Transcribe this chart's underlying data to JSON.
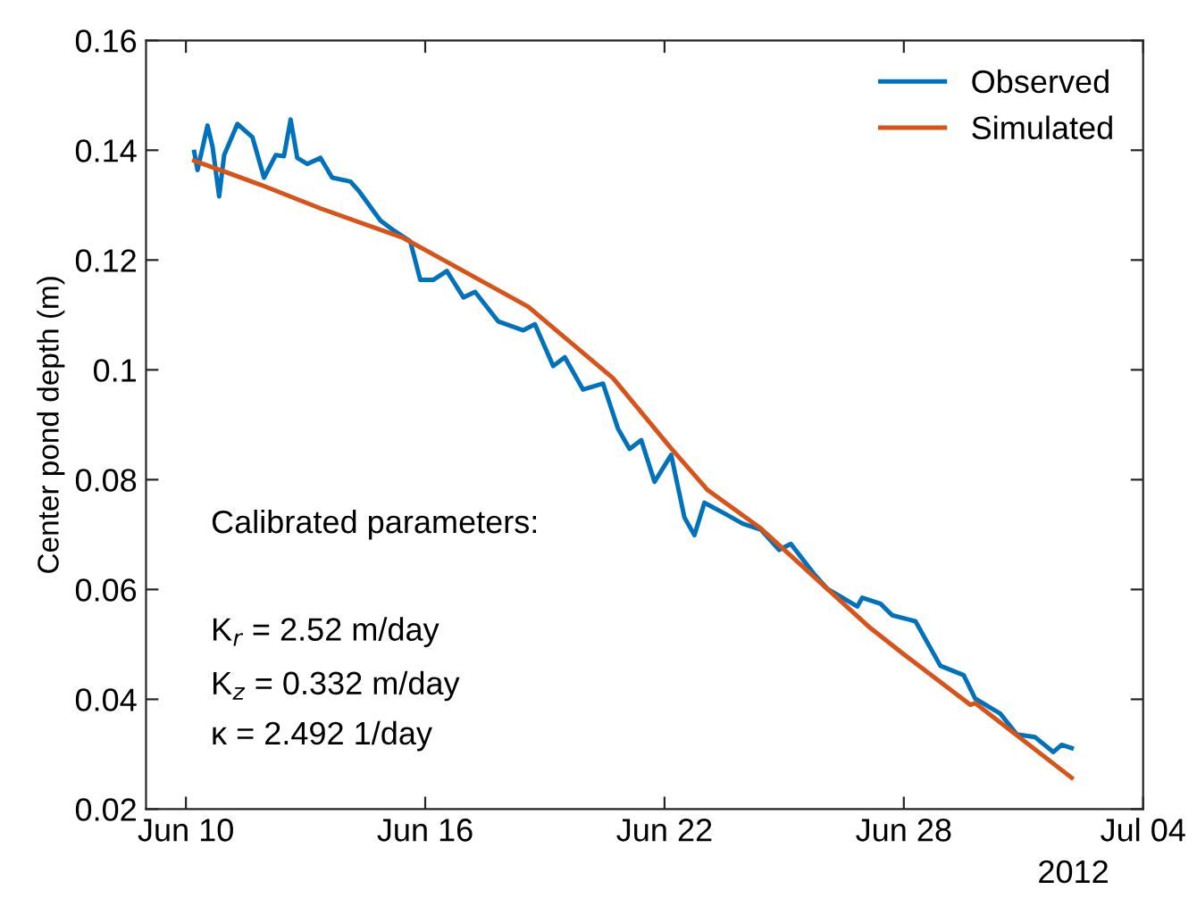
{
  "chart_data": {
    "type": "line",
    "ylabel": "Center pond depth (m)",
    "xlim": [
      "2012-06-09",
      "2012-07-04"
    ],
    "xticks": [
      {
        "value": "2012-06-10",
        "label": "Jun 10"
      },
      {
        "value": "2012-06-16",
        "label": "Jun 16"
      },
      {
        "value": "2012-06-22",
        "label": "Jun 22"
      },
      {
        "value": "2012-06-28",
        "label": "Jun 28"
      },
      {
        "value": "2012-07-04",
        "label": "Jul 04"
      }
    ],
    "ylim": [
      0.02,
      0.16
    ],
    "yticks": [
      0.02,
      0.04,
      0.06,
      0.08,
      0.1,
      0.12,
      0.14,
      0.16
    ],
    "grid": false,
    "legend": "top right",
    "line_style": "solid",
    "marker": "none",
    "annotations": [
      "Calibrated parameters:",
      "K$_{r}$ = 2.52 m/day",
      "K$_{z}$ = 0.332 m/day",
      "κ = 2.492 1/day",
      "2012"
    ],
    "series": [
      {
        "name": "Observed",
        "color": "#0072bd",
        "x": [
          "2012-06-10T05:00",
          "2012-06-10T07:00",
          "2012-06-10T13:00",
          "2012-06-10T16:00",
          "2012-06-10T20:00",
          "2012-06-10T23:00",
          "2012-06-11T07:00",
          "2012-06-11T16:00",
          "2012-06-11T23:00",
          "2012-06-12T06:00",
          "2012-06-12T11:00",
          "2012-06-12T15:00",
          "2012-06-12T19:00",
          "2012-06-13T01:00",
          "2012-06-13T09:00",
          "2012-06-13T16:00",
          "2012-06-14T03:00",
          "2012-06-14T08:00",
          "2012-06-14T21:00",
          "2012-06-15T04:00",
          "2012-06-15T15:00",
          "2012-06-15T21:00",
          "2012-06-16T05:00",
          "2012-06-16T13:00",
          "2012-06-16T23:00",
          "2012-06-17T06:00",
          "2012-06-17T20:00",
          "2012-06-18T11:00",
          "2012-06-18T18:00",
          "2012-06-19T05:00",
          "2012-06-19T12:00",
          "2012-06-19T23:00",
          "2012-06-20T11:00",
          "2012-06-20T20:00",
          "2012-06-21T03:00",
          "2012-06-21T10:00",
          "2012-06-21T18:00",
          "2012-06-22T04:00",
          "2012-06-22T12:00",
          "2012-06-22T18:00",
          "2012-06-23T00:00",
          "2012-06-23T13:00",
          "2012-06-23T23:00",
          "2012-06-24T10:00",
          "2012-06-24T21:00",
          "2012-06-25T04:00",
          "2012-06-25T18:00",
          "2012-06-26T02:00",
          "2012-06-26T20:00",
          "2012-06-26T23:00",
          "2012-06-27T10:00",
          "2012-06-27T17:00",
          "2012-06-28T07:00",
          "2012-06-28T22:00",
          "2012-06-29T12:00",
          "2012-06-29T19:00",
          "2012-06-30T10:00",
          "2012-06-30T20:00",
          "2012-07-01T07:00",
          "2012-07-01T18:00",
          "2012-07-01T23:00",
          "2012-07-02T05:00"
        ],
        "values": [
          0.1397,
          0.1364,
          0.1445,
          0.1407,
          0.1316,
          0.1391,
          0.1448,
          0.1424,
          0.135,
          0.1391,
          0.1389,
          0.1456,
          0.1386,
          0.1375,
          0.1386,
          0.135,
          0.1343,
          0.1326,
          0.1272,
          0.1256,
          0.1234,
          0.1164,
          0.1164,
          0.118,
          0.1132,
          0.1142,
          0.1088,
          0.1072,
          0.1083,
          0.1007,
          0.1023,
          0.0964,
          0.0975,
          0.0893,
          0.0856,
          0.0872,
          0.0796,
          0.0845,
          0.0731,
          0.0699,
          0.0758,
          0.0737,
          0.072,
          0.0709,
          0.0672,
          0.0683,
          0.0628,
          0.0601,
          0.0569,
          0.0585,
          0.0574,
          0.0553,
          0.0542,
          0.0461,
          0.0444,
          0.0401,
          0.0374,
          0.0336,
          0.0331,
          0.0304,
          0.0317,
          0.0311
        ]
      },
      {
        "name": "Simulated",
        "color": "#d95319",
        "x": [
          "2012-06-10T05:00",
          "2012-06-11T21:00",
          "2012-06-13T09:00",
          "2012-06-15T11:00",
          "2012-06-16T23:00",
          "2012-06-18T14:00",
          "2012-06-20T17:00",
          "2012-06-22T04:00",
          "2012-06-23T02:00",
          "2012-06-24T10:00",
          "2012-06-27T03:00",
          "2012-06-28T00:00",
          "2012-06-29T16:00",
          "2012-06-29T19:00",
          "2012-07-02T05:00"
        ],
        "values": [
          0.1381,
          0.1337,
          0.1294,
          0.124,
          0.118,
          0.1115,
          0.0985,
          0.0857,
          0.0781,
          0.0711,
          0.0532,
          0.0482,
          0.039,
          0.0393,
          0.0257
        ]
      }
    ]
  }
}
